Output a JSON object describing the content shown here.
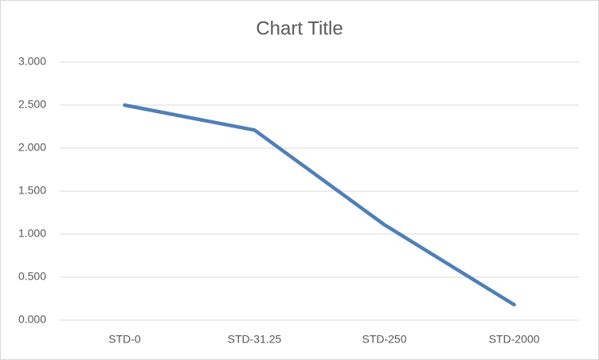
{
  "chart_data": {
    "type": "line",
    "title": "Chart Title",
    "categories": [
      "STD-0",
      "STD-31.25",
      "STD-250",
      "STD-2000"
    ],
    "values": [
      2.5,
      2.21,
      1.11,
      0.18
    ],
    "color": "#4f7fb8",
    "ylim": [
      0,
      3
    ],
    "yticks": [
      {
        "value": 0,
        "label": "0.000"
      },
      {
        "value": 0.5,
        "label": "0.500"
      },
      {
        "value": 1,
        "label": "1.000"
      },
      {
        "value": 1.5,
        "label": "1.500"
      },
      {
        "value": 2,
        "label": "2.000"
      },
      {
        "value": 2.5,
        "label": "2.500"
      },
      {
        "value": 3,
        "label": "3.000"
      }
    ],
    "grid": true
  }
}
